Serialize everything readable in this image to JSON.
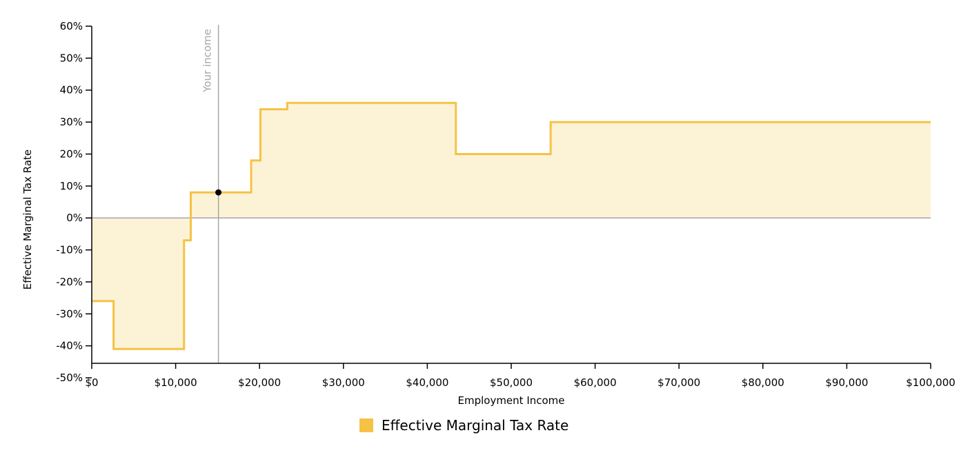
{
  "chart_data": {
    "type": "area",
    "xlabel": "Employment Income",
    "ylabel": "Effective Marginal Tax Rate",
    "xlim": [
      0,
      100000
    ],
    "ylim": [
      -50,
      60
    ],
    "x_ticks": [
      0,
      10000,
      20000,
      30000,
      40000,
      50000,
      60000,
      70000,
      80000,
      90000,
      100000
    ],
    "x_tick_labels": [
      "$0",
      "$10,000",
      "$20,000",
      "$30,000",
      "$40,000",
      "$50,000",
      "$60,000",
      "$70,000",
      "$80,000",
      "$90,000",
      "$100,000"
    ],
    "y_ticks": [
      60,
      50,
      40,
      30,
      20,
      10,
      0,
      -10,
      -20,
      -30,
      -40,
      -50
    ],
    "y_tick_labels": [
      "60%",
      "50%",
      "40%",
      "30%",
      "20%",
      "10%",
      "0%",
      "-10%",
      "-20%",
      "-30%",
      "-40%",
      "-50%"
    ],
    "grid": false,
    "legend_position": "bottom-center",
    "series": [
      {
        "name": "Effective Marginal Tax Rate",
        "color": "#f5c245",
        "fill_color": "#fcf2d6",
        "step": true,
        "points": [
          {
            "x": 0,
            "y": -26
          },
          {
            "x": 2600,
            "y": -41
          },
          {
            "x": 11000,
            "y": -7
          },
          {
            "x": 11800,
            "y": 8
          },
          {
            "x": 19000,
            "y": 18
          },
          {
            "x": 20100,
            "y": 34
          },
          {
            "x": 23300,
            "y": 36
          },
          {
            "x": 43400,
            "y": 20
          },
          {
            "x": 54700,
            "y": 30
          },
          {
            "x": 100000,
            "y": 30
          }
        ]
      }
    ],
    "annotations": {
      "marker_label": "Your income",
      "marker_x": 15100,
      "marker_y": 8,
      "marker_color": "#a6a6a6",
      "zero_line_color": "#a6a6a6"
    }
  }
}
